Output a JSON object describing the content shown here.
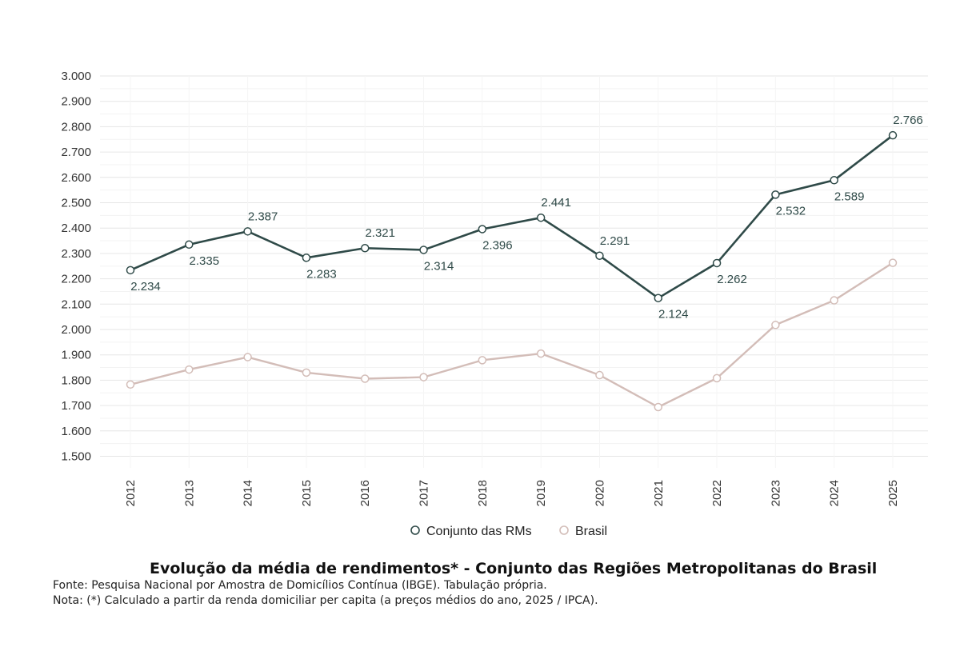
{
  "chart_data": {
    "type": "line",
    "categories": [
      "2012",
      "2013",
      "2014",
      "2015",
      "2016",
      "2017",
      "2018",
      "2019",
      "2020",
      "2021",
      "2022",
      "2023",
      "2024",
      "2025"
    ],
    "series": [
      {
        "name": "Conjunto das RMs",
        "values": [
          2234,
          2335,
          2387,
          2283,
          2321,
          2314,
          2396,
          2441,
          2291,
          2124,
          2262,
          2532,
          2589,
          2766
        ],
        "labels": [
          "2.234",
          "2.335",
          "2.387",
          "2.283",
          "2.321",
          "2.314",
          "2.396",
          "2.441",
          "2.291",
          "2.124",
          "2.262",
          "2.532",
          "2.589",
          "2.766"
        ],
        "color": "#2f4a48"
      },
      {
        "name": "Brasil",
        "values": [
          1783,
          1842,
          1891,
          1830,
          1806,
          1812,
          1879,
          1905,
          1820,
          1694,
          1808,
          2018,
          2115,
          2263
        ],
        "color": "#d3bdb8"
      }
    ],
    "ylim": [
      1450,
      3000
    ],
    "yticks": [
      {
        "v": 1500,
        "label": "1.500"
      },
      {
        "v": 1600,
        "label": "1.600"
      },
      {
        "v": 1700,
        "label": "1.700"
      },
      {
        "v": 1800,
        "label": "1.800"
      },
      {
        "v": 1900,
        "label": "1.900"
      },
      {
        "v": 2000,
        "label": "2.000"
      },
      {
        "v": 2100,
        "label": "2.100"
      },
      {
        "v": 2200,
        "label": "2.200"
      },
      {
        "v": 2300,
        "label": "2.300"
      },
      {
        "v": 2400,
        "label": "2.400"
      },
      {
        "v": 2500,
        "label": "2.500"
      },
      {
        "v": 2600,
        "label": "2.600"
      },
      {
        "v": 2700,
        "label": "2.700"
      },
      {
        "v": 2800,
        "label": "2.800"
      },
      {
        "v": 2900,
        "label": "2.900"
      },
      {
        "v": 3000,
        "label": "3.000"
      }
    ],
    "grid": true,
    "legend": "bottom",
    "xlabel": "",
    "ylabel": ""
  },
  "caption": {
    "title": "Evolução da média de rendimentos* - Conjunto das Regiões Metropolitanas do Brasil",
    "source": "Fonte: Pesquisa Nacional por Amostra de Domicílios Contínua (IBGE). Tabulação própria.",
    "note": "Nota: (*) Calculado a partir da renda domiciliar per capita (a preços médios do ano, 2025 / IPCA)."
  }
}
